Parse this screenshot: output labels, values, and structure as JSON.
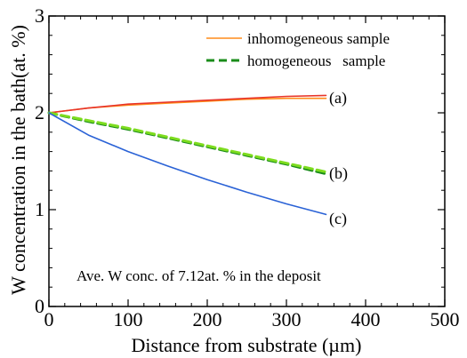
{
  "chart_data": {
    "type": "line",
    "title": "",
    "xlabel": "Distance from substrate (µm)",
    "ylabel": "W concentration in the bath(at. %)",
    "xlim": [
      0,
      500
    ],
    "ylim": [
      0,
      3
    ],
    "x_ticks": [
      "0",
      "100",
      "200",
      "300",
      "400",
      "500"
    ],
    "y_ticks": [
      "0",
      "1",
      "2",
      "3"
    ],
    "grid": false,
    "legend": {
      "placement": "top-right",
      "entries": [
        "inhomogeneous sample",
        "homogeneous   sample"
      ]
    },
    "annotation": "Ave. W conc. of 7.12at. % in the deposit",
    "series": [
      {
        "name": "inhomogeneous sample",
        "curve_label": "(a)",
        "color": "#ff8c1a",
        "style": "solid",
        "x": [
          0,
          50,
          100,
          150,
          200,
          250,
          300,
          350
        ],
        "values": [
          2.0,
          2.05,
          2.08,
          2.1,
          2.12,
          2.14,
          2.15,
          2.15
        ]
      },
      {
        "curve_label": "(a)",
        "color": "#e8352a",
        "style": "solid",
        "x": [
          0,
          50,
          100,
          150,
          200,
          250,
          300,
          350
        ],
        "values": [
          2.0,
          2.05,
          2.09,
          2.11,
          2.13,
          2.15,
          2.17,
          2.18
        ]
      },
      {
        "name": "homogeneous   sample",
        "curve_label": "(b)",
        "color": "#1a8c1a",
        "style": "dashed",
        "x": [
          0,
          50,
          100,
          150,
          200,
          250,
          300,
          350
        ],
        "values": [
          2.0,
          1.91,
          1.83,
          1.74,
          1.65,
          1.56,
          1.47,
          1.37
        ]
      },
      {
        "curve_label": "(b)",
        "color": "#7ddc1f",
        "style": "dashed",
        "x": [
          0,
          50,
          100,
          150,
          200,
          250,
          300,
          350
        ],
        "values": [
          2.0,
          1.92,
          1.84,
          1.75,
          1.66,
          1.57,
          1.48,
          1.39
        ]
      },
      {
        "curve_label": "(c)",
        "color": "#2a62d6",
        "style": "solid",
        "x": [
          0,
          50,
          100,
          150,
          200,
          250,
          300,
          350
        ],
        "values": [
          2.0,
          1.77,
          1.6,
          1.45,
          1.31,
          1.18,
          1.06,
          0.95
        ]
      }
    ]
  }
}
